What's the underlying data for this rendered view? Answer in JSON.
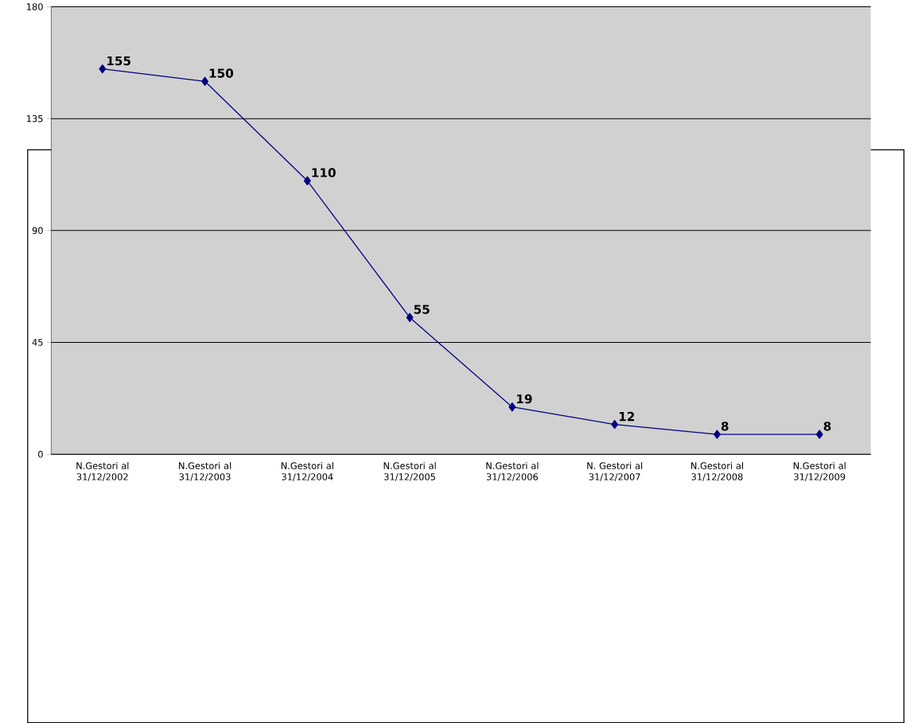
{
  "chart_data": {
    "type": "line",
    "categories": [
      "N.Gestori al 31/12/2002",
      "N.Gestori al 31/12/2003",
      "N.Gestori al 31/12/2004",
      "N.Gestori al 31/12/2005",
      "N.Gestori al 31/12/2006",
      "N. Gestori al 31/12/2007",
      "N.Gestori al 31/12/2008",
      "N.Gestori al 31/12/2009"
    ],
    "values": [
      155,
      150,
      110,
      55,
      19,
      12,
      8,
      8
    ],
    "color": "#000080",
    "ylim": [
      0,
      180
    ],
    "yticks": [
      0,
      45,
      90,
      135,
      180
    ],
    "grid": "y",
    "marker": "diamond",
    "line_style": "solid",
    "data_labels": true
  }
}
